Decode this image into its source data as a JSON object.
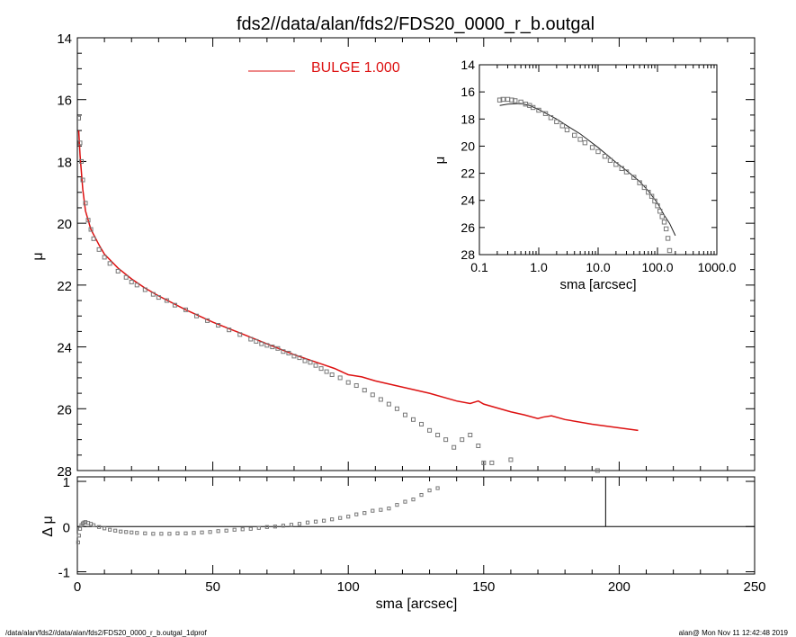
{
  "title": "fds2//data/alan/fds2/FDS20_0000_r_b.outgal",
  "footer": {
    "left": "/data/alan/fds2//data/alan/fds2/FDS20_0000_r_b.outgal_1dprof",
    "right": "alan@  Mon Nov 11 12:42:48 2019"
  },
  "colors": {
    "axes": "#000000",
    "model": "#dd1111",
    "points": "#777777",
    "inset_model": "#222222"
  },
  "chart_data": [
    {
      "type": "scatter",
      "panel": "main",
      "ylabel": "μ",
      "xlim": [
        0,
        250
      ],
      "ylim": [
        28,
        14
      ],
      "y_inverted": true,
      "yticks": [
        "14",
        "16",
        "18",
        "20",
        "22",
        "24",
        "26",
        "28"
      ],
      "legend": {
        "label": "BULGE  1.000",
        "placement": "top-center"
      },
      "series": [
        {
          "name": "BULGE  1.000",
          "type": "line",
          "x": [
            0.5,
            1,
            2,
            3,
            5,
            8,
            10,
            15,
            20,
            25,
            30,
            40,
            50,
            60,
            70,
            80,
            90,
            95,
            100,
            105,
            110,
            120,
            130,
            140,
            145,
            148,
            150,
            160,
            165,
            170,
            172,
            175,
            180,
            190,
            207
          ],
          "y": [
            17.0,
            17.8,
            18.9,
            19.6,
            20.2,
            20.7,
            21.0,
            21.45,
            21.8,
            22.1,
            22.35,
            22.8,
            23.2,
            23.55,
            23.9,
            24.25,
            24.55,
            24.7,
            24.9,
            24.97,
            25.1,
            25.3,
            25.5,
            25.75,
            25.83,
            25.75,
            25.85,
            26.1,
            26.2,
            26.32,
            26.27,
            26.23,
            26.35,
            26.5,
            26.7
          ]
        },
        {
          "type": "scatter",
          "x": [
            0.5,
            1,
            1.5,
            2,
            3,
            4,
            5,
            6,
            8,
            10,
            12,
            15,
            18,
            20,
            22,
            25,
            28,
            30,
            33,
            36,
            40,
            44,
            48,
            52,
            56,
            60,
            64,
            66,
            68,
            70,
            72,
            74,
            76,
            78,
            80,
            82,
            84,
            86,
            88,
            90,
            92,
            94,
            97,
            100,
            103,
            106,
            109,
            112,
            115,
            118,
            121,
            124,
            127,
            130,
            133,
            136,
            139,
            142,
            145,
            148,
            150,
            153,
            160,
            192
          ],
          "y": [
            16.6,
            17.4,
            18.0,
            18.6,
            19.35,
            19.9,
            20.2,
            20.5,
            20.85,
            21.1,
            21.3,
            21.55,
            21.75,
            21.9,
            22.0,
            22.15,
            22.3,
            22.4,
            22.5,
            22.65,
            22.8,
            23.0,
            23.15,
            23.3,
            23.45,
            23.6,
            23.75,
            23.82,
            23.9,
            23.95,
            24.0,
            24.05,
            24.15,
            24.2,
            24.3,
            24.35,
            24.45,
            24.5,
            24.6,
            24.7,
            24.8,
            24.9,
            25.0,
            25.15,
            25.25,
            25.4,
            25.55,
            25.7,
            25.85,
            26.0,
            26.2,
            26.35,
            26.5,
            26.7,
            26.85,
            27.0,
            27.25,
            27.0,
            26.85,
            27.2,
            27.75,
            27.75,
            27.65,
            28.0
          ]
        }
      ]
    },
    {
      "type": "scatter",
      "panel": "residual",
      "xlabel": "sma [arcsec]",
      "ylabel": "Δ μ",
      "xlim": [
        0,
        250
      ],
      "ylim": [
        -1.05,
        1.1
      ],
      "xticks": [
        "0",
        "50",
        "100",
        "150",
        "200",
        "250"
      ],
      "yticks": [
        "1",
        "0",
        "-1"
      ],
      "reference_line_y": 0,
      "marker_x": 195,
      "series": [
        {
          "type": "scatter",
          "x": [
            0.3,
            0.6,
            1,
            1.5,
            2,
            2.5,
            3,
            4,
            5,
            6,
            8,
            10,
            12,
            14,
            16,
            18,
            20,
            22,
            25,
            28,
            31,
            34,
            37,
            40,
            43,
            46,
            49,
            52,
            55,
            58,
            61,
            64,
            67,
            70,
            73,
            76,
            79,
            82,
            85,
            88,
            91,
            94,
            97,
            100,
            103,
            106,
            109,
            112,
            115,
            118,
            121,
            124,
            127,
            130,
            133
          ],
          "y": [
            -0.35,
            -0.2,
            -0.05,
            0.03,
            0.07,
            0.09,
            0.1,
            0.08,
            0.06,
            0.03,
            -0.01,
            -0.04,
            -0.07,
            -0.09,
            -0.11,
            -0.12,
            -0.13,
            -0.14,
            -0.15,
            -0.16,
            -0.16,
            -0.16,
            -0.15,
            -0.15,
            -0.14,
            -0.13,
            -0.12,
            -0.1,
            -0.09,
            -0.07,
            -0.06,
            -0.05,
            -0.03,
            -0.01,
            0.0,
            0.02,
            0.04,
            0.06,
            0.09,
            0.11,
            0.13,
            0.16,
            0.19,
            0.22,
            0.27,
            0.3,
            0.35,
            0.37,
            0.4,
            0.48,
            0.55,
            0.6,
            0.7,
            0.8,
            0.85
          ]
        }
      ]
    },
    {
      "type": "scatter",
      "panel": "inset",
      "xlabel": "sma [arcsec]",
      "ylabel": "μ",
      "xscale": "log",
      "xlim": [
        0.1,
        1000
      ],
      "ylim": [
        28,
        14
      ],
      "xticks": [
        "0.1",
        "1.0",
        "10.0",
        "100.0",
        "1000.0"
      ],
      "yticks": [
        "14",
        "16",
        "18",
        "20",
        "22",
        "24",
        "26",
        "28"
      ],
      "series": [
        {
          "type": "line",
          "x": [
            0.22,
            0.3,
            0.5,
            0.7,
            1,
            2,
            3,
            5,
            10,
            20,
            30,
            50,
            70,
            100,
            130,
            160,
            200
          ],
          "y": [
            17.0,
            16.9,
            16.85,
            17.0,
            17.3,
            18.0,
            18.5,
            19.1,
            20.1,
            21.2,
            21.8,
            22.6,
            23.3,
            24.2,
            25.1,
            25.7,
            26.6
          ]
        },
        {
          "type": "scatter",
          "x": [
            0.22,
            0.25,
            0.3,
            0.35,
            0.4,
            0.5,
            0.6,
            0.7,
            0.8,
            1,
            1.3,
            1.6,
            2,
            2.5,
            3,
            4,
            5,
            6,
            8,
            10,
            13,
            16,
            20,
            25,
            30,
            40,
            50,
            60,
            70,
            80,
            90,
            100,
            110,
            120,
            130,
            140,
            150,
            160
          ],
          "y": [
            16.6,
            16.55,
            16.55,
            16.6,
            16.65,
            16.75,
            16.9,
            17.0,
            17.15,
            17.35,
            17.6,
            17.9,
            18.2,
            18.5,
            18.8,
            19.2,
            19.5,
            19.75,
            20.1,
            20.4,
            20.75,
            21.05,
            21.35,
            21.65,
            21.9,
            22.3,
            22.7,
            23.05,
            23.4,
            23.7,
            24.05,
            24.4,
            24.8,
            25.2,
            25.6,
            26.1,
            26.8,
            27.7
          ]
        }
      ]
    }
  ]
}
